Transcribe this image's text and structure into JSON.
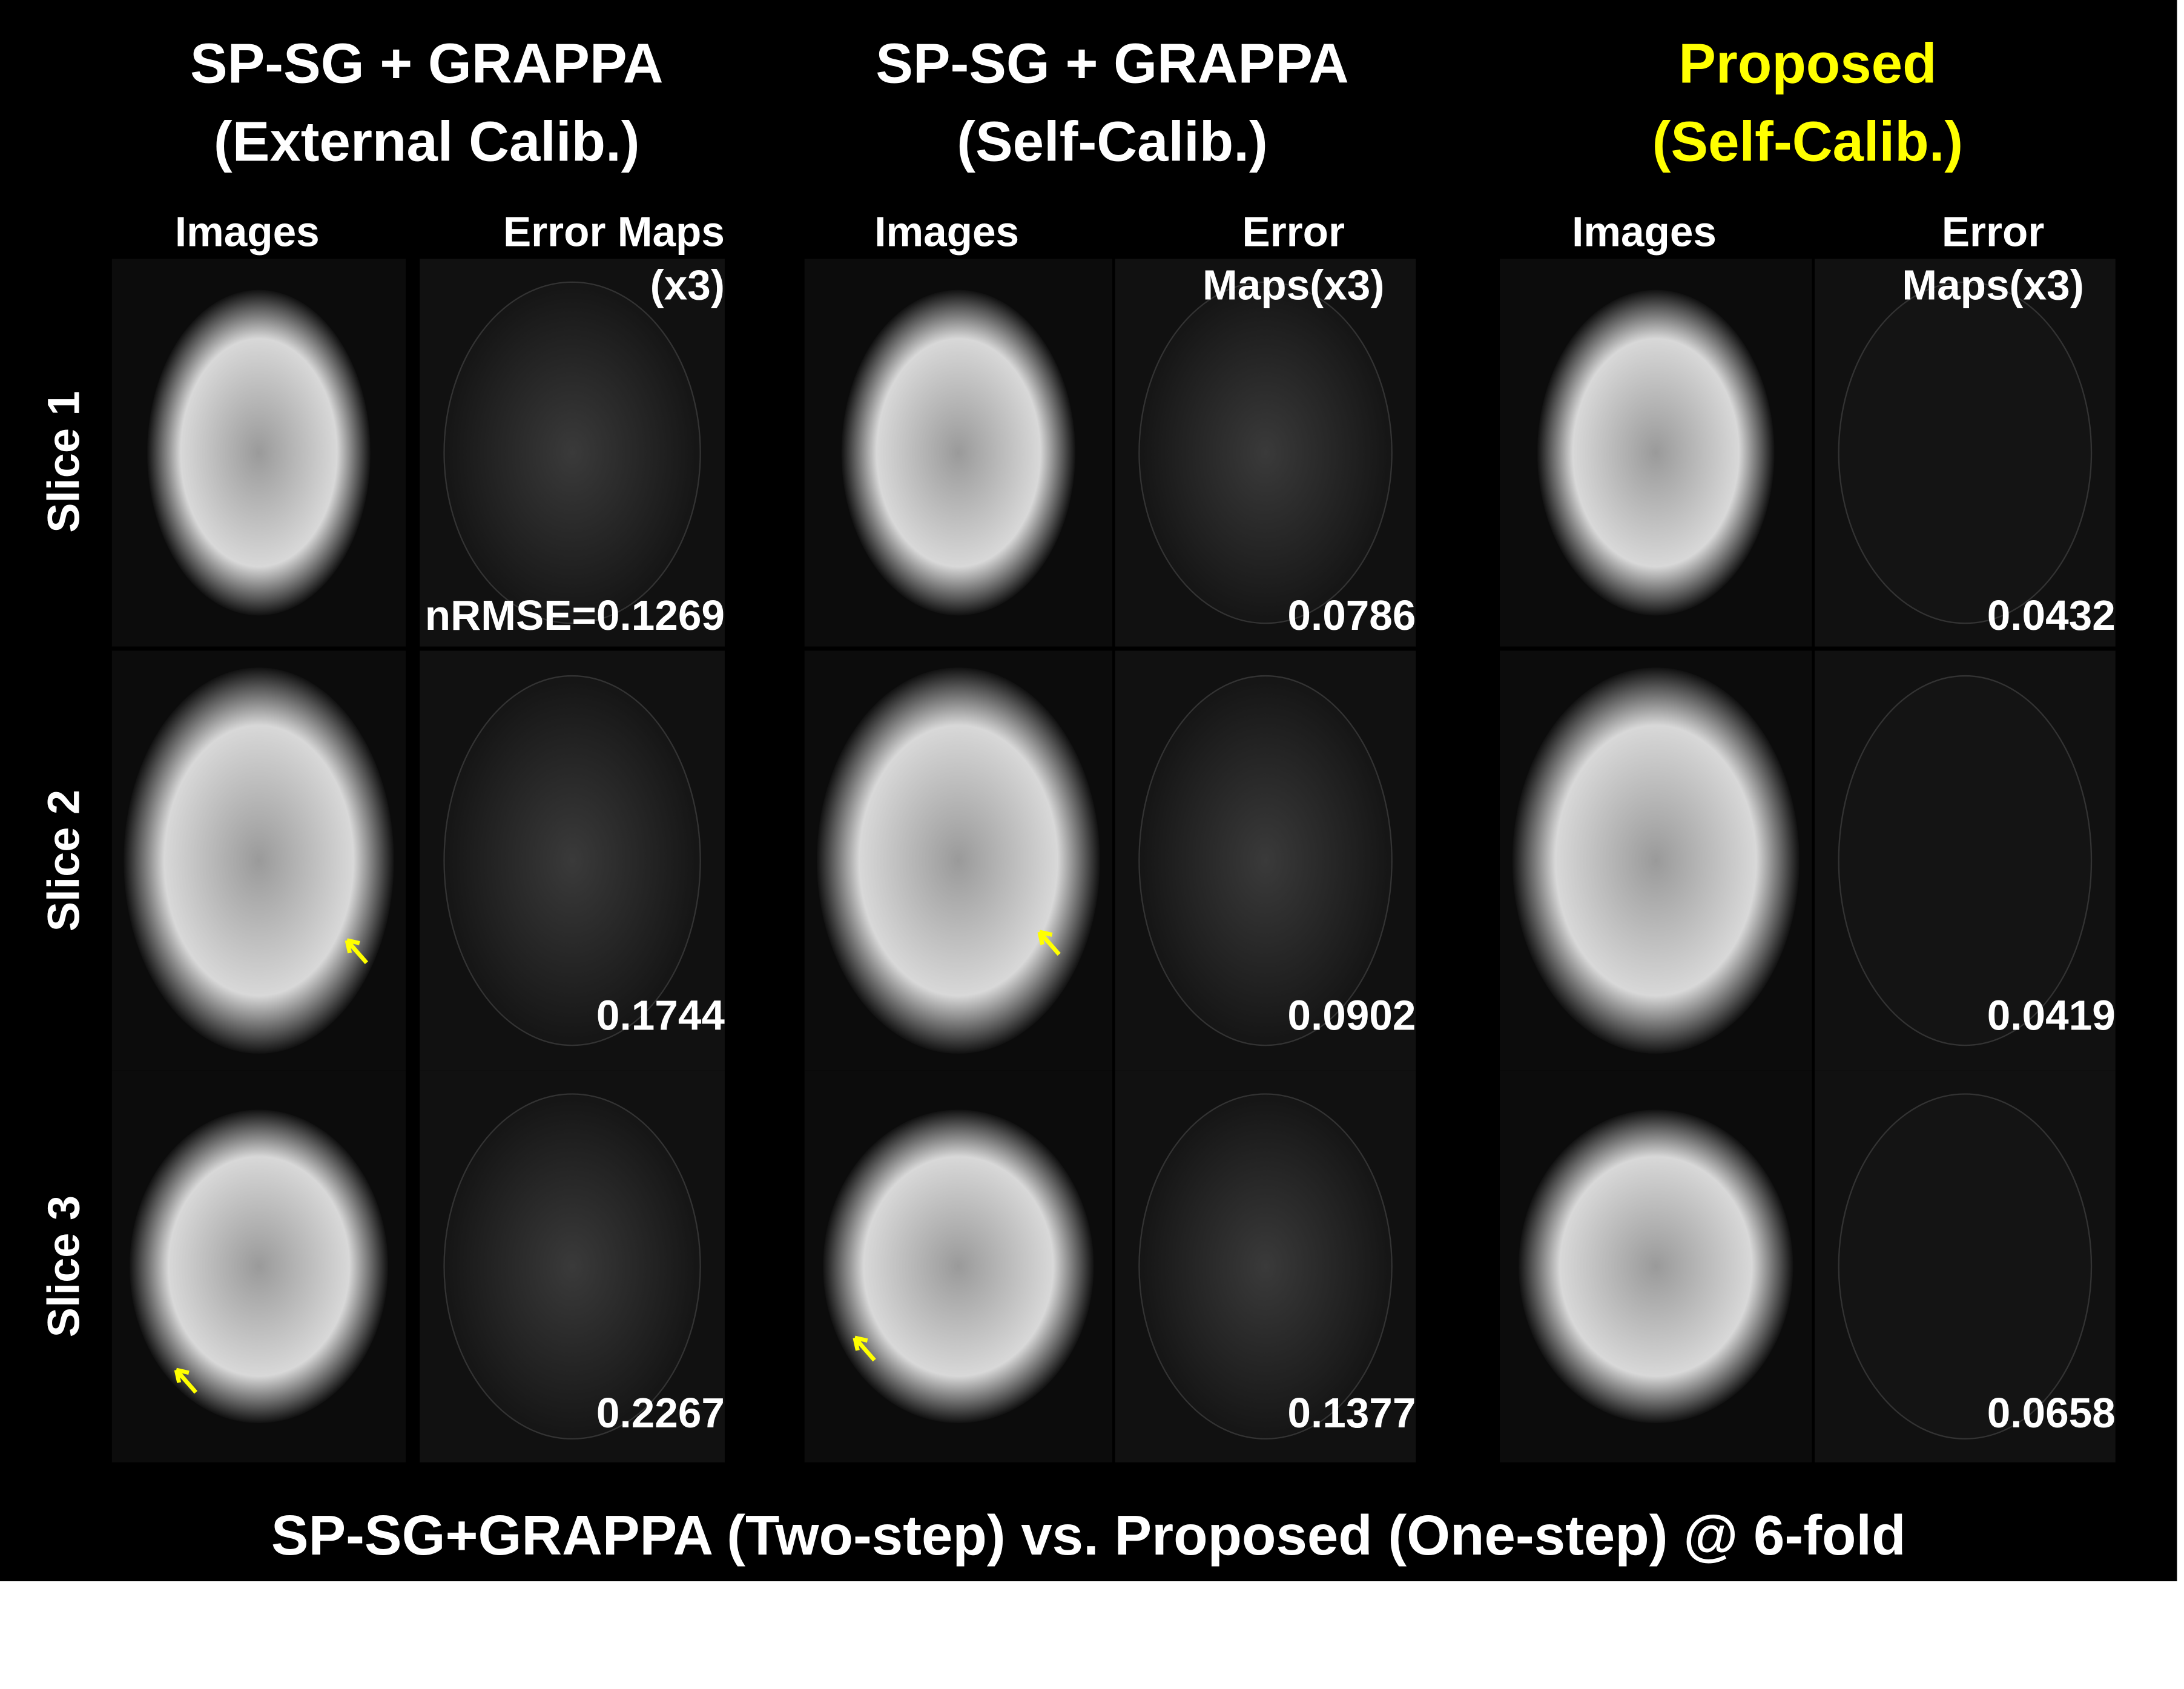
{
  "groups": [
    {
      "title_lines": [
        "SP-SG + GRAPPA",
        "(External Calib.)"
      ],
      "color": "#ffffff",
      "image_header": "Images",
      "error_header": "Error Maps (x3)",
      "nrmse": [
        "nRMSE=0.1269",
        "0.1744",
        "0.2267"
      ]
    },
    {
      "title_lines": [
        "SP-SG + GRAPPA",
        "(Self-Calib.)"
      ],
      "color": "#ffffff",
      "image_header": "Images",
      "error_header": "Error Maps(x3)",
      "nrmse": [
        "0.0786",
        "0.0902",
        "0.1377"
      ]
    },
    {
      "title_lines": [
        "Proposed",
        "(Self-Calib.)"
      ],
      "color": "#ffff00",
      "image_header": "Images",
      "error_header": "Error Maps(x3)",
      "nrmse": [
        "0.0432",
        "0.0419",
        "0.0658"
      ]
    }
  ],
  "row_labels": [
    "Slice 1",
    "Slice 2",
    "Slice 3"
  ],
  "footer": "SP-SG+GRAPPA (Two-step) vs. Proposed (One-step) @ 6-fold"
}
